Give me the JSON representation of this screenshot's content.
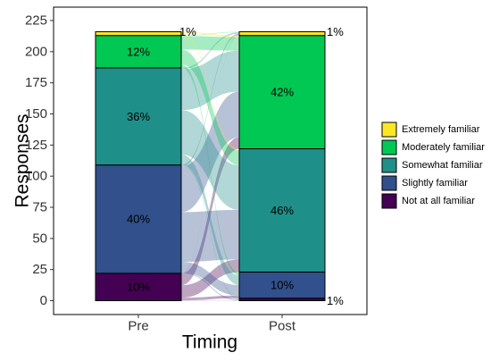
{
  "chart_data": {
    "type": "alluvial",
    "xlabel": "Timing",
    "ylabel": "Responses",
    "ylim": [
      0,
      225
    ],
    "yticks": [
      0,
      25,
      50,
      75,
      100,
      125,
      150,
      175,
      200,
      225
    ],
    "categories": [
      "Pre",
      "Post"
    ],
    "grid": false,
    "legend_position": "right",
    "levels": [
      {
        "name": "Not at all familiar",
        "color": "#440154"
      },
      {
        "name": "Slightly familiar",
        "color": "#31508c"
      },
      {
        "name": "Somewhat familiar",
        "color": "#1f8f8a"
      },
      {
        "name": "Moderately familiar",
        "color": "#00c853"
      },
      {
        "name": "Extremely familiar",
        "color": "#fde725"
      }
    ],
    "columns": [
      {
        "name": "Pre",
        "counts": [
          22,
          87,
          78,
          26,
          3
        ],
        "labels": [
          "10%",
          "40%",
          "36%",
          "12%",
          "1%"
        ]
      },
      {
        "name": "Post",
        "counts": [
          2,
          21,
          99,
          91,
          3
        ],
        "labels": [
          "1%",
          "10%",
          "46%",
          "42%",
          "1%"
        ]
      }
    ]
  }
}
